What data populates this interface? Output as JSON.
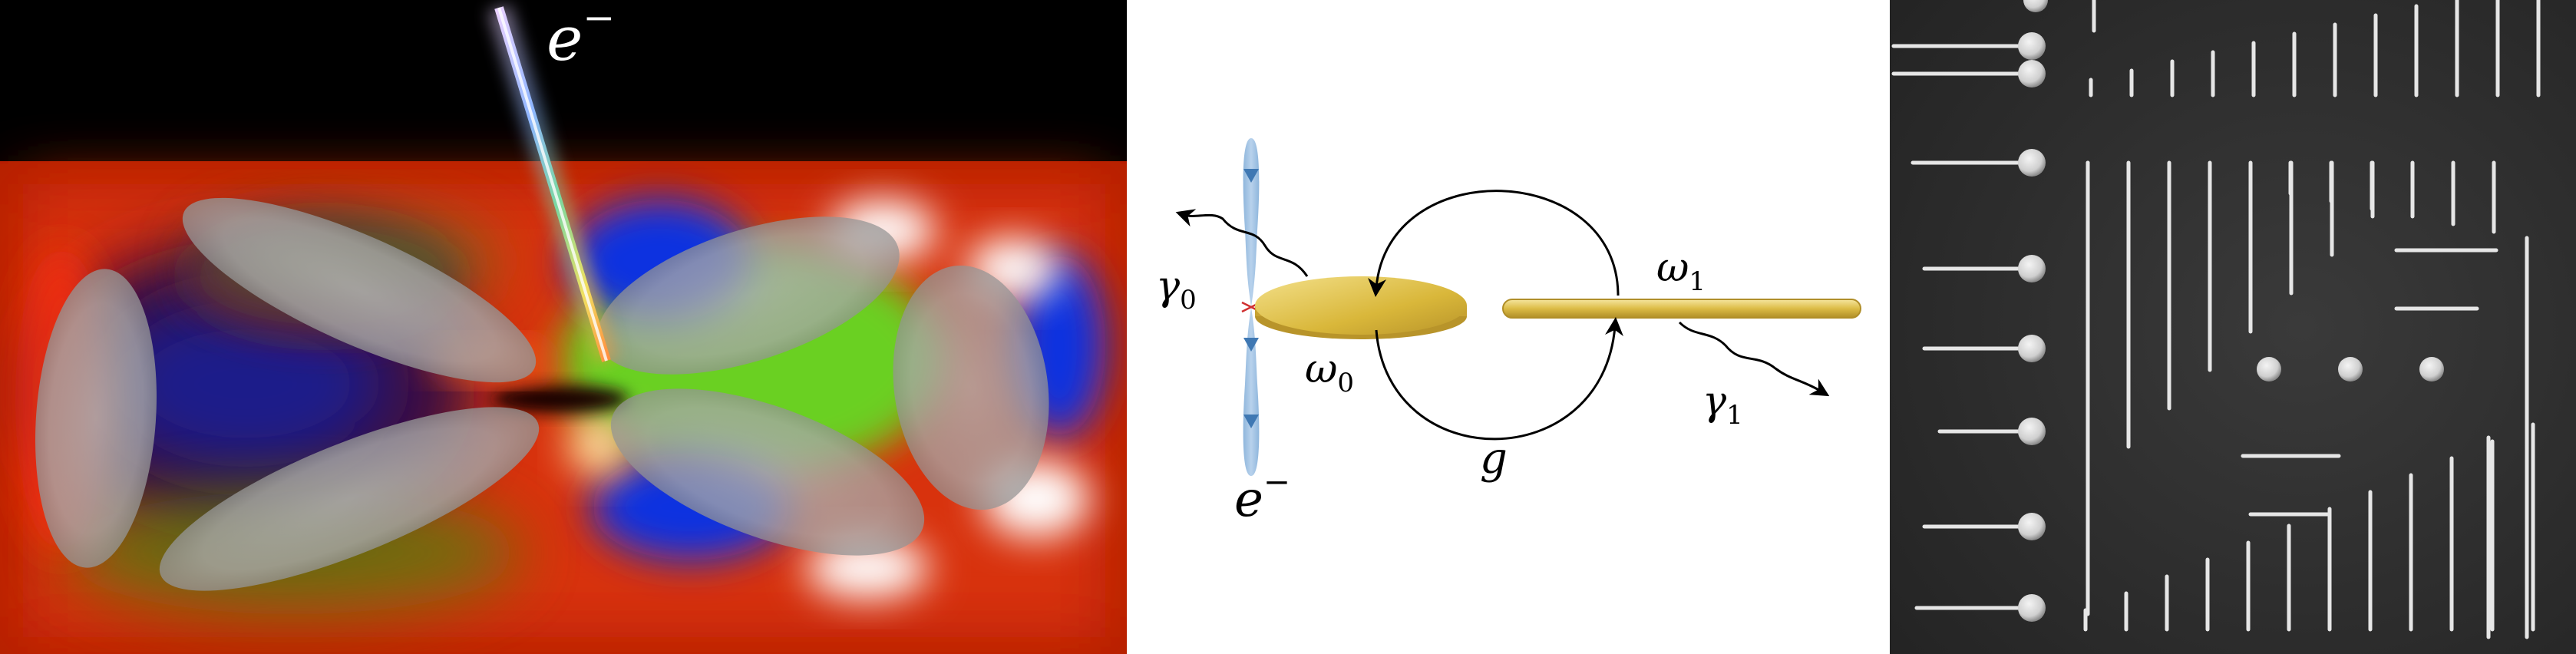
{
  "left_panel": {
    "electron_label": "e",
    "electron_charge": "−"
  },
  "middle_panel": {
    "electron_label": "e",
    "electron_charge": "−",
    "gamma0": "γ",
    "gamma0_sub": "0",
    "omega0": "ω",
    "omega0_sub": "0",
    "omega1": "ω",
    "omega1_sub": "1",
    "gamma1": "γ",
    "gamma1_sub": "1",
    "coupling": "g"
  },
  "colors": {
    "disk_gold": "#d8b93f",
    "disk_dark": "#b0902a",
    "beam_blue": "#8fb6dc",
    "beam_dark": "#3f78b3"
  },
  "right_panel": {
    "image": "SEM micrograph of nanostructures"
  }
}
